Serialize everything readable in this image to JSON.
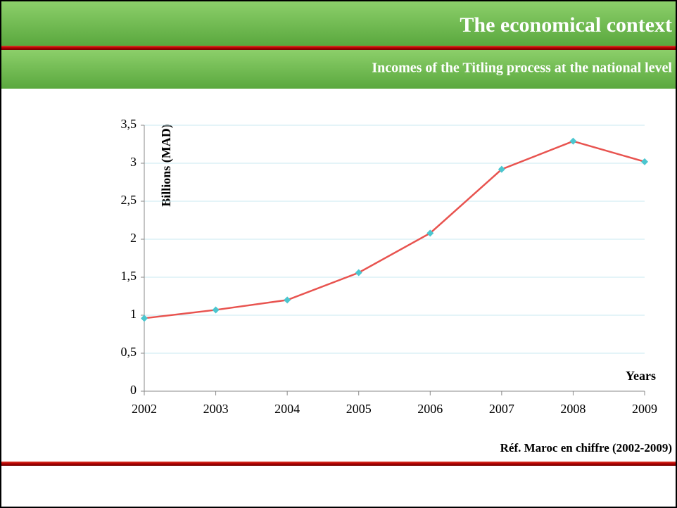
{
  "header": {
    "title": "The economical context",
    "subtitle": "Incomes of the Titling process at the national level"
  },
  "chart_data": {
    "type": "line",
    "y_axis_label": "Billions (MAD)",
    "x_axis_label": "Years",
    "categories": [
      "2002",
      "2003",
      "2004",
      "2005",
      "2006",
      "2007",
      "2008",
      "2009"
    ],
    "values": [
      0.96,
      1.07,
      1.2,
      1.56,
      2.08,
      2.92,
      3.29,
      3.02
    ],
    "color": "#e8534f",
    "marker_color": "#4bc6cf",
    "ylim": [
      0,
      3.5
    ],
    "yticks": [
      0,
      {
        "value": 0.5,
        "label": "0,5"
      },
      1,
      {
        "value": 1.5,
        "label": "1,5"
      },
      2,
      {
        "value": 2.5,
        "label": "2,5"
      },
      3,
      {
        "value": 3.5,
        "label": "3,5"
      }
    ],
    "grid": true
  },
  "footer": {
    "reference": "Réf. Maroc en chiffre (2002-2009)"
  }
}
